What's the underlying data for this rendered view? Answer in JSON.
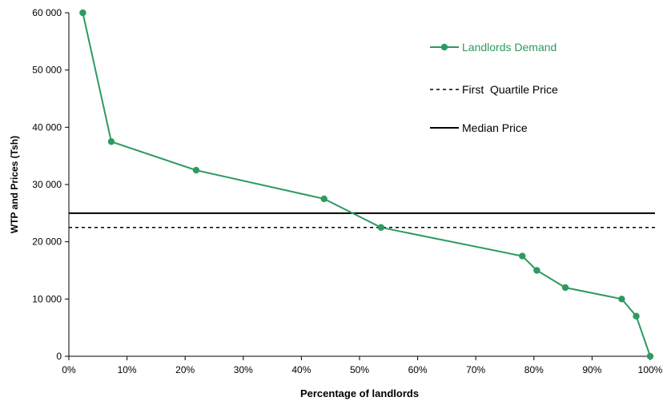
{
  "chart_data": {
    "type": "line",
    "xlabel": "Percentage of landlords",
    "ylabel": "WTP and Prices  (Tsh)",
    "xlim": [
      0,
      1
    ],
    "ylim": [
      0,
      60000
    ],
    "x_ticks": [
      "0%",
      "10%",
      "20%",
      "30%",
      "40%",
      "50%",
      "60%",
      "70%",
      "80%",
      "90%",
      "100%"
    ],
    "x_tick_values": [
      0,
      0.1,
      0.2,
      0.3,
      0.4,
      0.5,
      0.6,
      0.7,
      0.8,
      0.9,
      1.0
    ],
    "y_ticks": [
      "0",
      "10 000",
      "20 000",
      "30 000",
      "40 000",
      "50 000",
      "60 000"
    ],
    "y_tick_values": [
      0,
      10000,
      20000,
      30000,
      40000,
      50000,
      60000
    ],
    "grid": false,
    "legend_position": "top-right",
    "series": [
      {
        "name": "Landlords Demand",
        "style": "line-marker",
        "color": "#2e9a5f",
        "x": [
          0.024,
          0.073,
          0.219,
          0.439,
          0.537,
          0.78,
          0.805,
          0.854,
          0.951,
          0.976,
          1.0
        ],
        "y": [
          60000,
          37500,
          32500,
          27500,
          22500,
          17500,
          15000,
          12000,
          10000,
          7000,
          0
        ]
      },
      {
        "name": "First  Quartile Price",
        "style": "dotted",
        "color": "#000000",
        "y_constant": 22500
      },
      {
        "name": "Median Price",
        "style": "solid",
        "color": "#000000",
        "y_constant": 25000
      }
    ]
  }
}
